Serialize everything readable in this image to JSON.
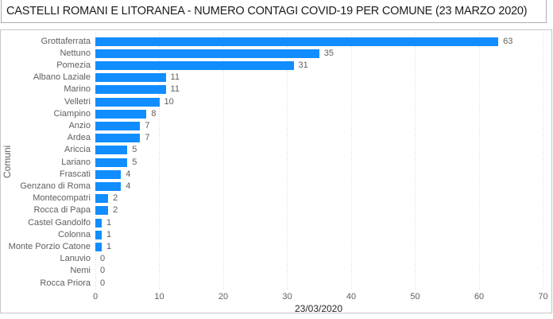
{
  "title": "CASTELLI ROMANI E LITORANEA - NUMERO CONTAGI COVID-19 PER COMUNE (23 MARZO 2020)",
  "colors": {
    "bar": "#118DFF",
    "axis_text": "#605E5C",
    "date_text": "#252423",
    "title_text": "#1c1c1c",
    "grid": "#d9d9d9",
    "title_border": "#adadad",
    "chart_border": "#c6c6c6"
  },
  "chart_data": {
    "type": "bar",
    "orientation": "horizontal",
    "title": "CASTELLI ROMANI E LITORANEA - NUMERO CONTAGI COVID-19 PER COMUNE (23 MARZO 2020)",
    "xlabel": "23/03/2020",
    "ylabel": "Comuni",
    "xlim": [
      0,
      70
    ],
    "xticks": [
      0,
      10,
      20,
      30,
      40,
      50,
      60,
      70
    ],
    "grid": "vertical-dotted",
    "data_labels": true,
    "legend": "none",
    "categories": [
      "Grottaferrata",
      "Nettuno",
      "Pomezia",
      "Albano Laziale",
      "Marino",
      "Velletri",
      "Ciampino",
      "Anzio",
      "Ardea",
      "Ariccia",
      "Lariano",
      "Frascati",
      "Genzano di Roma",
      "Montecompatri",
      "Rocca di Papa",
      "Castel Gandolfo",
      "Colonna",
      "Monte Porzio Catone",
      "Lanuvio",
      "Nemi",
      "Rocca Priora"
    ],
    "values": [
      63,
      35,
      31,
      11,
      11,
      10,
      8,
      7,
      7,
      5,
      5,
      4,
      4,
      2,
      2,
      1,
      1,
      1,
      0,
      0,
      0
    ]
  }
}
